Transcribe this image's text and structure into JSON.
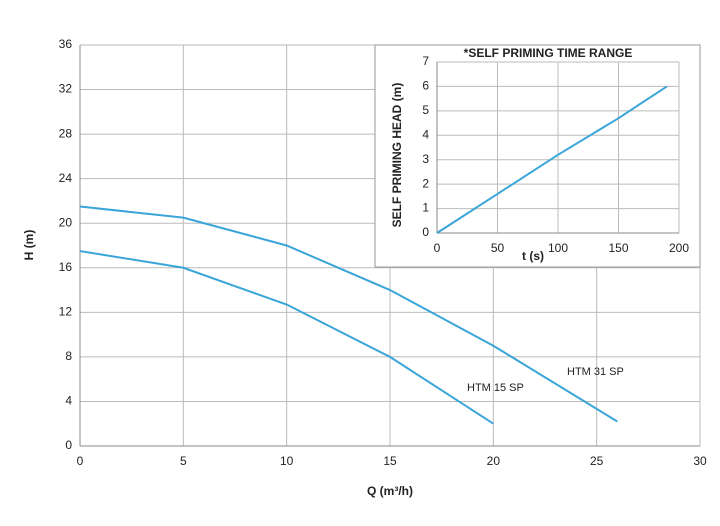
{
  "chart_data": [
    {
      "type": "line",
      "xlabel": "Q (m³/h)",
      "ylabel": "H (m)",
      "xlim": [
        0,
        30
      ],
      "xticks": [
        0,
        5,
        10,
        15,
        20,
        25,
        30
      ],
      "ylim": [
        0,
        36
      ],
      "yticks": [
        0,
        4,
        8,
        12,
        16,
        20,
        24,
        28,
        32,
        36
      ],
      "grid": true,
      "series": [
        {
          "name": "HTM 31 SP",
          "color": "#3aa5d8",
          "x": [
            0,
            5,
            10,
            15,
            20,
            26
          ],
          "values": [
            21.5,
            20.5,
            18,
            14,
            9,
            2.2
          ]
        },
        {
          "name": "HTM 15 SP",
          "color": "#3aa5d8",
          "x": [
            0,
            5,
            10,
            15,
            20
          ],
          "values": [
            17.5,
            16,
            12.7,
            8,
            2
          ]
        }
      ]
    },
    {
      "type": "line",
      "title": "*SELF PRIMING TIME RANGE",
      "xlabel": "t (s)",
      "ylabel": "SELF PRIMING HEAD (m)",
      "xlim": [
        0,
        200
      ],
      "xticks": [
        0,
        50,
        100,
        150,
        200
      ],
      "ylim": [
        0,
        7
      ],
      "yticks": [
        0,
        1,
        2,
        3,
        4,
        5,
        6,
        7
      ],
      "grid": true,
      "series": [
        {
          "color": "#3aa5d8",
          "x": [
            0,
            50,
            100,
            150,
            190
          ],
          "values": [
            0,
            1.6,
            3.2,
            4.7,
            6
          ]
        }
      ]
    }
  ]
}
